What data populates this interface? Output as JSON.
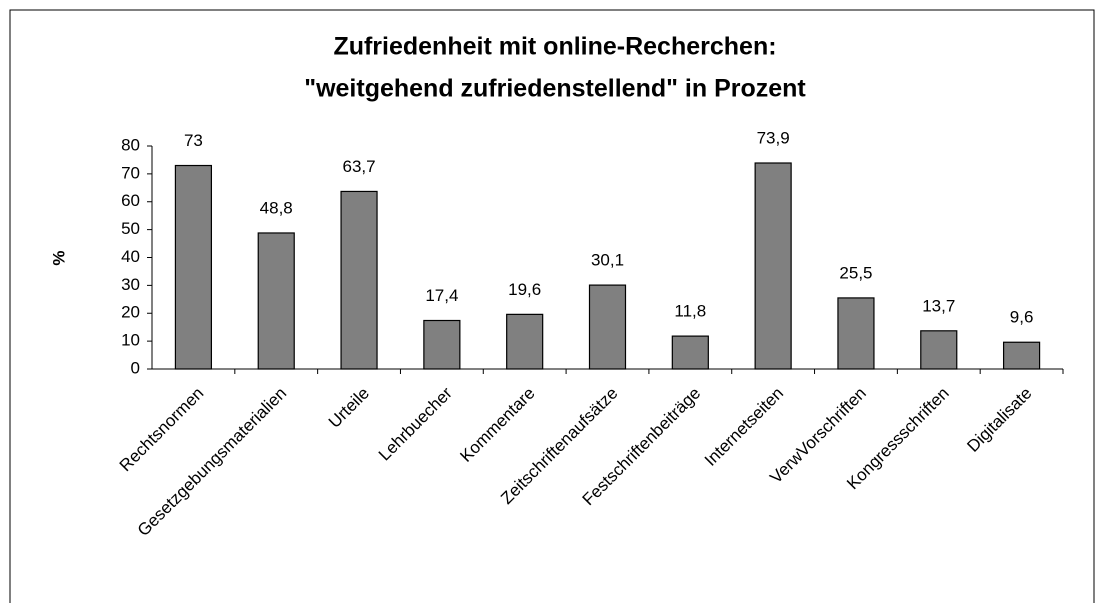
{
  "chart_data": {
    "type": "bar",
    "title": [
      "Zufriedenheit mit online-Recherchen:",
      "\"weitgehend zufriedenstellend\" in Prozent"
    ],
    "y_label": "%",
    "categories": [
      "Rechtsnormen",
      "Gesetzgebungsmaterialien",
      "Urteile",
      "Lehrbuecher",
      "Kommentare",
      "Zeitschriftenaufsätze",
      "Festschriftenbeiträge",
      "Internetseiten",
      "VerwVorschriften",
      "Kongressschriften",
      "Digitalisate"
    ],
    "values": [
      73,
      48.8,
      63.7,
      17.4,
      19.6,
      30.1,
      11.8,
      73.9,
      25.5,
      13.7,
      9.6
    ],
    "value_labels": [
      "73",
      "48,8",
      "63,7",
      "17,4",
      "19,6",
      "30,1",
      "11,8",
      "73,9",
      "25,5",
      "13,7",
      "9,6"
    ],
    "color": "#808080",
    "ylim": [
      0,
      80
    ],
    "yticks": [
      0,
      10,
      20,
      30,
      40,
      50,
      60,
      70,
      80
    ],
    "grid": false
  }
}
